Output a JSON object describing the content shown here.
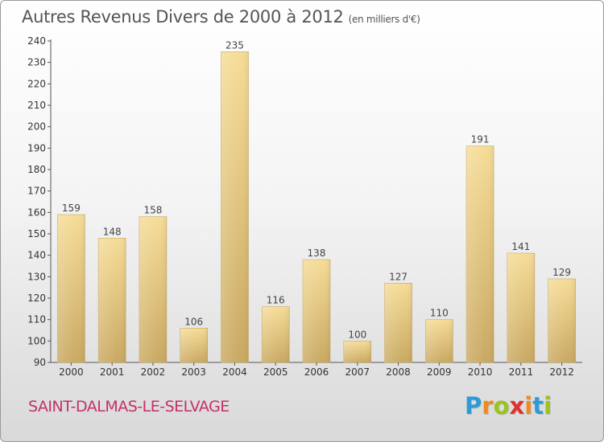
{
  "header": {
    "title": "Autres Revenus Divers de 2000 à 2012",
    "unit": "(en milliers d'€)"
  },
  "footer": {
    "commune": "SAINT-DALMAS-LE-SELVAGE",
    "logo_letters": [
      "P",
      "r",
      "o",
      "x",
      "i",
      "t",
      "i"
    ],
    "logo_colors": [
      "#2e9bd6",
      "#f08a1c",
      "#9bc31c",
      "#e0312c",
      "#f08a1c",
      "#2e9bd6",
      "#9bc31c"
    ]
  },
  "chart_data": {
    "type": "bar",
    "title": "Autres Revenus Divers de 2000 à 2012",
    "subtitle": "(en milliers d'€)",
    "categories": [
      "2000",
      "2001",
      "2002",
      "2003",
      "2004",
      "2005",
      "2006",
      "2007",
      "2008",
      "2009",
      "2010",
      "2011",
      "2012"
    ],
    "values": [
      159,
      148,
      158,
      106,
      235,
      116,
      138,
      100,
      127,
      110,
      191,
      141,
      129
    ],
    "ylim": [
      90,
      240
    ],
    "yticks": [
      90,
      100,
      110,
      120,
      130,
      140,
      150,
      160,
      170,
      180,
      190,
      200,
      210,
      220,
      230,
      240
    ],
    "grid": false,
    "bar_color": "#e8c978"
  }
}
